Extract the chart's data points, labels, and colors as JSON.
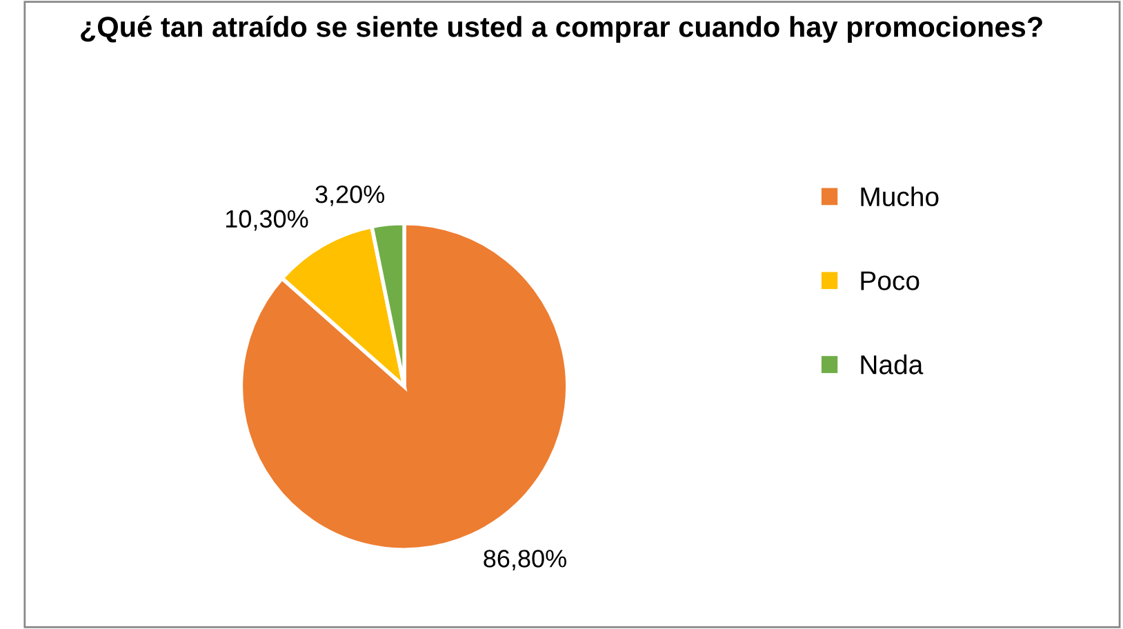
{
  "chart_data": {
    "type": "pie",
    "title": "¿Qué tan atraído se siente usted a comprar cuando hay promociones?",
    "categories": [
      "Mucho",
      "Poco",
      "Nada"
    ],
    "values": [
      86.8,
      10.3,
      3.2
    ],
    "colors": [
      "#ed7d31",
      "#ffc000",
      "#70ad47"
    ],
    "value_labels": [
      "86,80%",
      "10,30%",
      "3,20%"
    ],
    "legend": "right"
  }
}
